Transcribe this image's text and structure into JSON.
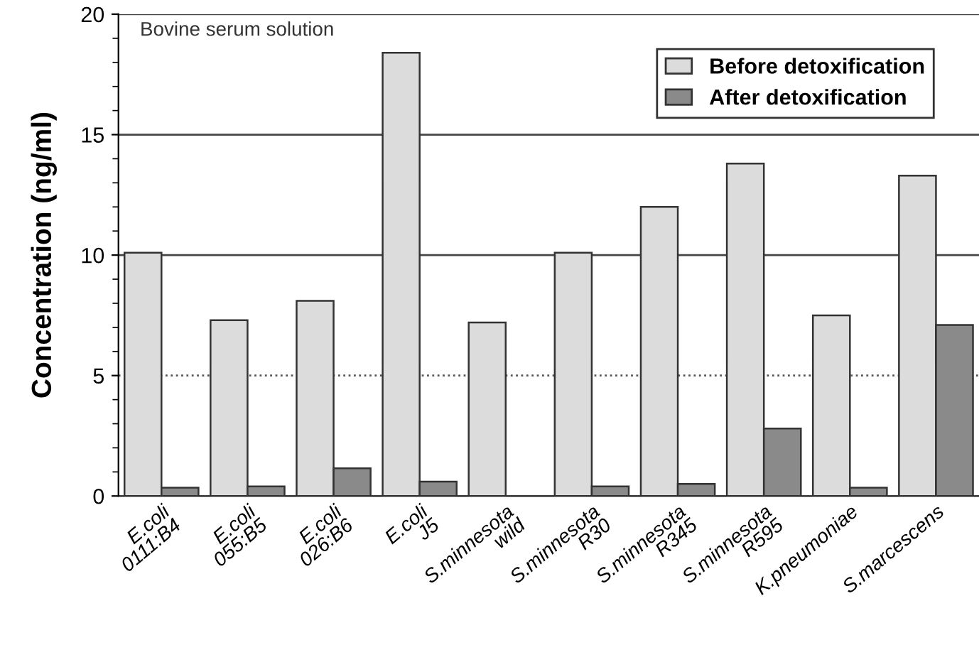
{
  "chart_data": {
    "type": "bar",
    "categories": [
      "E.coli\n0111:B4",
      "E.coli\n055:B5",
      "E.coli\n026:B6",
      "E.coli\nJ5",
      "S.minnesota\nwild",
      "S.minnesota\nR30",
      "S.minnesota\nR345",
      "S.minnesota\nR595",
      "K.pneumoniae",
      "S.marcescens"
    ],
    "series": [
      {
        "name": "Before detoxification",
        "color": "#dcdcdc",
        "values": [
          10.1,
          7.3,
          8.1,
          18.4,
          7.2,
          10.1,
          12.0,
          13.8,
          7.5,
          13.3
        ]
      },
      {
        "name": "After detoxification",
        "color": "#8a8a8a",
        "values": [
          0.35,
          0.4,
          1.15,
          0.6,
          null,
          0.4,
          0.5,
          2.8,
          0.35,
          7.1
        ]
      }
    ],
    "ylabel": "Concentration (ng/ml)",
    "annotations": [
      "Bovine serum solution"
    ],
    "ylim": [
      0,
      20
    ],
    "yticks": [
      0,
      5,
      10,
      15,
      20
    ],
    "grid": "y",
    "ref_lines": [
      {
        "axis": "y",
        "value": 5,
        "label": null,
        "line_style": "dotted",
        "color": "#555555"
      }
    ],
    "legend": "top right"
  }
}
